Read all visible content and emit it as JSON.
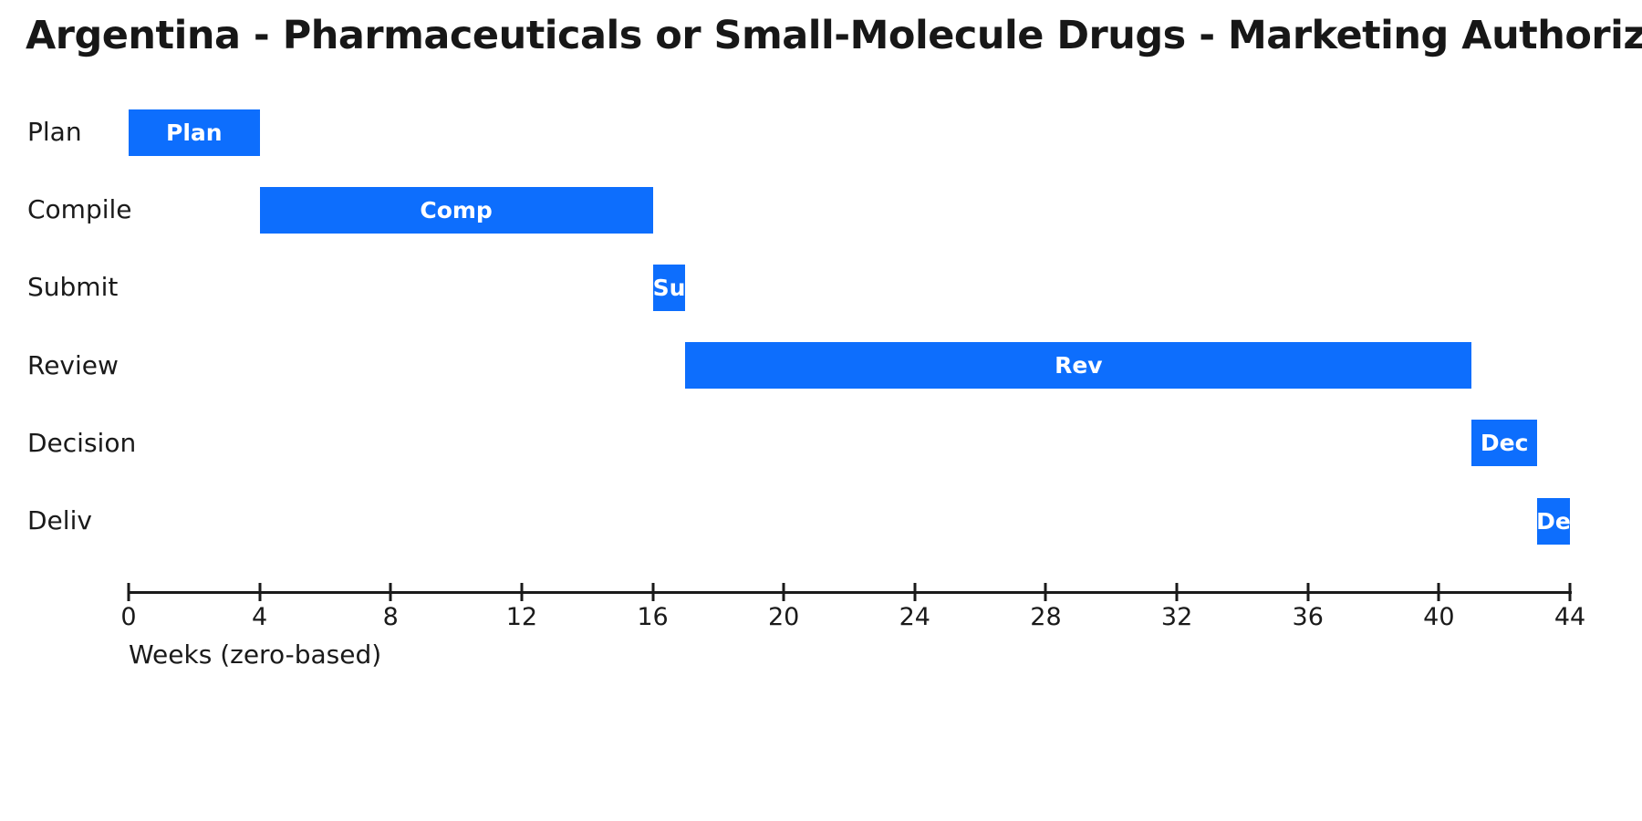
{
  "title": "Argentina - Pharmaceuticals or Small-Molecule Drugs - Marketing Authoriz",
  "colors": {
    "bar": "#0d6efd",
    "bar_label": "#ffffff",
    "text": "#1a1a1a",
    "axis": "#1a1a1a",
    "background": "#ffffff"
  },
  "chart_data": {
    "type": "bar",
    "subtype": "gantt-horizontal",
    "title": "Argentina - Pharmaceuticals or Small-Molecule Drugs - Marketing Authoriz",
    "xlabel": "Weeks (zero-based)",
    "ylabel": "",
    "xlim": [
      0,
      44
    ],
    "xticks": [
      0,
      4,
      8,
      12,
      16,
      20,
      24,
      28,
      32,
      36,
      40,
      44
    ],
    "grid": false,
    "legend": false,
    "rows": [
      {
        "label": "Plan",
        "bar_label": "Plan",
        "start": 0,
        "end": 4,
        "duration_weeks": 4
      },
      {
        "label": "Compile",
        "bar_label": "Comp",
        "start": 4,
        "end": 16,
        "duration_weeks": 12
      },
      {
        "label": "Submit",
        "bar_label": "Su",
        "start": 16,
        "end": 17,
        "duration_weeks": 1
      },
      {
        "label": "Review",
        "bar_label": "Rev",
        "start": 17,
        "end": 41,
        "duration_weeks": 24
      },
      {
        "label": "Decision",
        "bar_label": "Dec",
        "start": 41,
        "end": 43,
        "duration_weeks": 2
      },
      {
        "label": "Deliv",
        "bar_label": "De",
        "start": 43,
        "end": 44,
        "duration_weeks": 1
      }
    ]
  }
}
